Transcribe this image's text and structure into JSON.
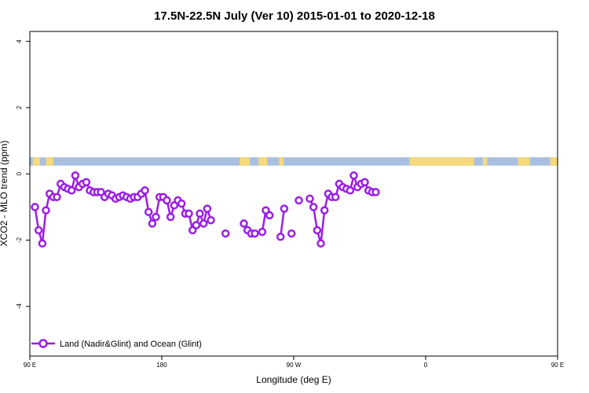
{
  "chart_data": {
    "type": "line",
    "title": "17.5N-22.5N July (Ver 10)   2015-01-01 to 2020-12-18",
    "xlabel": "Longitude (deg E)",
    "ylabel": "XCO2 - MLO trend (ppm)",
    "xlim": [
      90,
      450
    ],
    "ylim": [
      -5.5,
      4.3
    ],
    "x_ticks": [
      {
        "value": 90,
        "label": "90 E"
      },
      {
        "value": 180,
        "label": "180"
      },
      {
        "value": 270,
        "label": "90 W"
      },
      {
        "value": 360,
        "label": "0"
      },
      {
        "value": 450,
        "label": "90 E"
      },
      {
        "value": 540,
        "label": "180"
      }
    ],
    "y_ticks": [
      {
        "value": -4,
        "label": "-4"
      },
      {
        "value": -2,
        "label": "-2"
      },
      {
        "value": 0,
        "label": "0"
      },
      {
        "value": 2,
        "label": "2"
      },
      {
        "value": 4,
        "label": "4"
      }
    ],
    "land_ocean_strip": {
      "y_range": [
        0.25,
        0.5
      ],
      "ocean_color": "#a8bfdf",
      "land_color": "#f5d97a",
      "land_segments": [
        [
          92,
          97
        ],
        [
          101,
          106
        ],
        [
          233,
          240
        ],
        [
          246,
          252
        ],
        [
          260,
          263
        ],
        [
          349,
          393
        ],
        [
          399,
          402
        ],
        [
          423,
          431
        ],
        [
          445,
          460
        ],
        [
          463,
          467
        ]
      ]
    },
    "legend": {
      "position": "bottom-left"
    },
    "grid": false,
    "series": [
      {
        "name": "Land (Nadir&Glint) and Ocean (Glint)",
        "color": "#9b1ee6",
        "segments": [
          [
            [
              93.5,
              -1.0
            ],
            [
              96,
              -1.7
            ],
            [
              98.5,
              -2.1
            ],
            [
              101,
              -1.1
            ],
            [
              103.5,
              -0.6
            ],
            [
              106,
              -0.7
            ],
            [
              108.5,
              -0.7
            ],
            [
              111,
              -0.3
            ],
            [
              113.5,
              -0.4
            ],
            [
              116,
              -0.45
            ],
            [
              118.5,
              -0.5
            ],
            [
              121,
              -0.05
            ],
            [
              123.5,
              -0.4
            ],
            [
              126,
              -0.3
            ],
            [
              128.5,
              -0.25
            ],
            [
              131,
              -0.5
            ],
            [
              133.5,
              -0.55
            ],
            [
              136,
              -0.55
            ],
            [
              138.5,
              -0.55
            ],
            [
              141,
              -0.7
            ],
            [
              143.5,
              -0.6
            ],
            [
              146,
              -0.65
            ],
            [
              148.5,
              -0.75
            ],
            [
              151,
              -0.7
            ],
            [
              153.5,
              -0.65
            ],
            [
              156,
              -0.7
            ],
            [
              158.5,
              -0.75
            ],
            [
              161,
              -0.7
            ],
            [
              163.5,
              -0.7
            ],
            [
              166,
              -0.6
            ],
            [
              168.5,
              -0.5
            ],
            [
              171,
              -1.15
            ],
            [
              173.5,
              -1.5
            ],
            [
              176,
              -1.3
            ],
            [
              178.5,
              -0.7
            ],
            [
              181,
              -0.7
            ],
            [
              183.5,
              -0.8
            ],
            [
              186,
              -1.3
            ],
            [
              188.5,
              -0.95
            ],
            [
              191,
              -0.8
            ],
            [
              193.5,
              -0.9
            ],
            [
              196,
              -1.2
            ],
            [
              198.5,
              -1.2
            ],
            [
              201,
              -1.7
            ],
            [
              203.5,
              -1.55
            ],
            [
              206,
              -1.2
            ],
            [
              208.5,
              -1.5
            ],
            [
              211,
              -1.05
            ],
            [
              213.5,
              -1.4
            ]
          ],
          [
            [
              223.5,
              -1.8
            ]
          ],
          [
            [
              236,
              -1.5
            ],
            [
              238.5,
              -1.7
            ],
            [
              241,
              -1.8
            ],
            [
              243.5,
              -1.8
            ]
          ],
          [
            [
              248.5,
              -1.75
            ],
            [
              251,
              -1.1
            ],
            [
              253.5,
              -1.25
            ]
          ],
          [
            [
              261,
              -1.9
            ],
            [
              263.5,
              -1.05
            ]
          ],
          [
            [
              268.5,
              -1.8
            ]
          ],
          [
            [
              273.5,
              -0.8
            ]
          ],
          [
            [
              281,
              -0.75
            ],
            [
              283.5,
              -1.0
            ],
            [
              286,
              -1.7
            ],
            [
              288.5,
              -2.1
            ],
            [
              291,
              -1.1
            ],
            [
              293.5,
              -0.6
            ],
            [
              296,
              -0.7
            ],
            [
              298.5,
              -0.7
            ],
            [
              301,
              -0.3
            ],
            [
              303.5,
              -0.4
            ],
            [
              306,
              -0.45
            ],
            [
              308.5,
              -0.5
            ],
            [
              311,
              -0.05
            ],
            [
              313.5,
              -0.4
            ],
            [
              316,
              -0.3
            ],
            [
              318.5,
              -0.25
            ],
            [
              321,
              -0.5
            ],
            [
              323.5,
              -0.55
            ],
            [
              326,
              -0.55
            ]
          ]
        ]
      }
    ]
  }
}
